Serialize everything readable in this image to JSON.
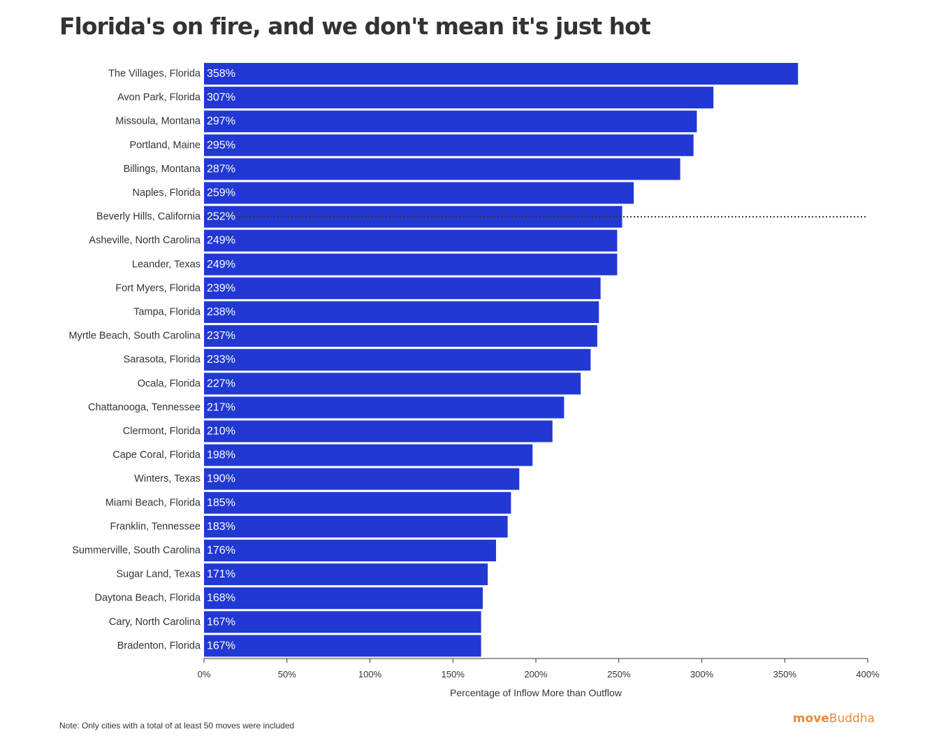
{
  "title": "Florida's on fire, and we don't mean it's just hot",
  "note": "Note: Only cities with a total of at least 50 moves were included",
  "brand": {
    "part1": "move",
    "part2": "Buddha",
    "color": "#e8893a"
  },
  "colors": {
    "bar": "#2238d3",
    "text": "#333333",
    "reference_line": "#333333"
  },
  "chart_data": {
    "type": "bar",
    "orientation": "horizontal",
    "categories": [
      "The Villages, Florida",
      "Avon Park, Florida",
      "Missoula, Montana",
      "Portland, Maine",
      "Billings, Montana",
      "Naples, Florida",
      "Beverly Hills, California",
      "Asheville, North Carolina",
      "Leander, Texas",
      "Fort Myers, Florida",
      "Tampa, Florida",
      "Myrtle Beach, South Carolina",
      "Sarasota, Florida",
      "Ocala, Florida",
      "Chattanooga, Tennessee",
      "Clermont, Florida",
      "Cape Coral, Florida",
      "Winters, Texas",
      "Miami Beach, Florida",
      "Franklin, Tennessee",
      "Summerville, South Carolina",
      "Sugar Land, Texas",
      "Daytona Beach, Florida",
      "Cary, North Carolina",
      "Bradenton, Florida"
    ],
    "values": [
      358,
      307,
      297,
      295,
      287,
      259,
      252,
      249,
      249,
      239,
      238,
      237,
      233,
      227,
      217,
      210,
      198,
      190,
      185,
      183,
      176,
      171,
      168,
      167,
      167
    ],
    "value_labels": [
      "358%",
      "307%",
      "297%",
      "295%",
      "287%",
      "259%",
      "252%",
      "249%",
      "249%",
      "239%",
      "238%",
      "237%",
      "233%",
      "227%",
      "217%",
      "210%",
      "198%",
      "190%",
      "185%",
      "183%",
      "176%",
      "171%",
      "168%",
      "167%",
      "167%"
    ],
    "xlabel": "Percentage of Inflow More than Outflow",
    "ylabel": "",
    "xlim": [
      0,
      400
    ],
    "xticks": [
      0,
      50,
      100,
      150,
      200,
      250,
      300,
      350,
      400
    ],
    "xtick_labels": [
      "0%",
      "50%",
      "100%",
      "150%",
      "200%",
      "250%",
      "300%",
      "350%",
      "400%"
    ],
    "reference_line": {
      "category": "Beverly Hills, California",
      "style": "dotted"
    },
    "grid": false,
    "legend": "none"
  }
}
